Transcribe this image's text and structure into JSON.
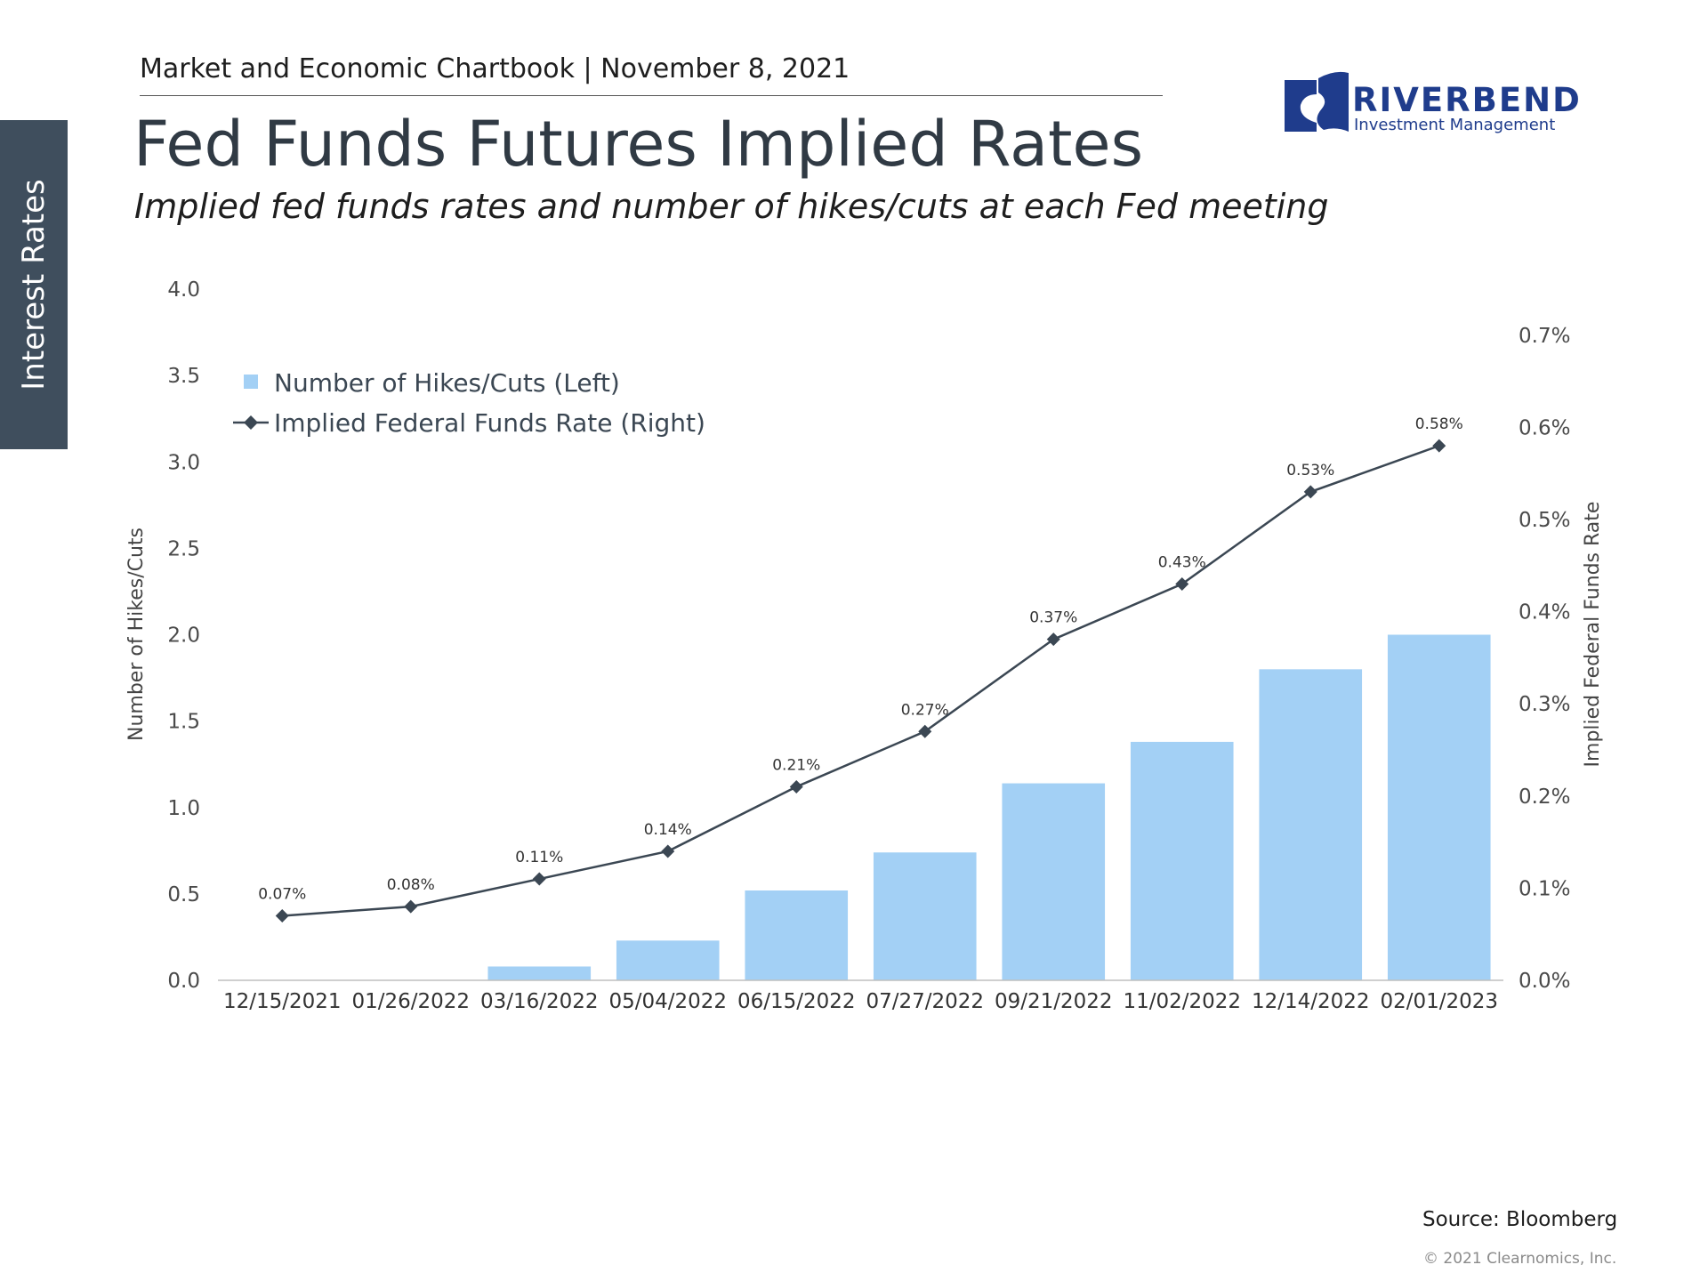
{
  "side_tab": {
    "label": "Interest Rates"
  },
  "header": {
    "text": "Market and Economic Chartbook | November 8, 2021",
    "title": "Fed Funds Futures Implied Rates",
    "subtitle": "Implied fed funds rates and number of hikes/cuts at each Fed meeting"
  },
  "logo": {
    "word": "RIVERBEND",
    "sub": "Investment Management",
    "color": "#1f3c8c"
  },
  "footer": {
    "source": "Source: Bloomberg",
    "copyright": "© 2021 Clearnomics, Inc."
  },
  "colors": {
    "bar": "#a3d0f5",
    "line": "#3b4753",
    "axis_text": "#4a4a4a",
    "side_tab": "#3f4e5d"
  },
  "chart_data": {
    "type": "bar",
    "categories": [
      "12/15/2021",
      "01/26/2022",
      "03/16/2022",
      "05/04/2022",
      "06/15/2022",
      "07/27/2022",
      "09/21/2022",
      "11/02/2022",
      "12/14/2022",
      "02/01/2023"
    ],
    "series": [
      {
        "name": "Number of Hikes/Cuts (Left)",
        "type": "bar",
        "axis": "left",
        "values": [
          0.0,
          0.0,
          0.08,
          0.23,
          0.52,
          0.74,
          1.14,
          1.38,
          1.8,
          2.0
        ]
      },
      {
        "name": "Implied Federal Funds Rate (Right)",
        "type": "line",
        "axis": "right",
        "marker": "diamond",
        "values": [
          0.07,
          0.08,
          0.11,
          0.14,
          0.21,
          0.27,
          0.37,
          0.43,
          0.53,
          0.58
        ],
        "labels": [
          "0.07%",
          "0.08%",
          "0.11%",
          "0.14%",
          "0.21%",
          "0.27%",
          "0.37%",
          "0.43%",
          "0.53%",
          "0.58%"
        ]
      }
    ],
    "y_left": {
      "label": "Number of Hikes/Cuts",
      "range": [
        0,
        4.0
      ],
      "ticks": [
        "0.0",
        "0.5",
        "1.0",
        "1.5",
        "2.0",
        "2.5",
        "3.0",
        "3.5",
        "4.0"
      ]
    },
    "y_right": {
      "label": "Implied Federal Funds Rate",
      "range": [
        0,
        0.75
      ],
      "tick_values": [
        0,
        0.1,
        0.2,
        0.3,
        0.4,
        0.5,
        0.6,
        0.7
      ],
      "ticks": [
        "0.0%",
        "0.1%",
        "0.2%",
        "0.3%",
        "0.4%",
        "0.5%",
        "0.6%",
        "0.7%"
      ]
    },
    "legend": {
      "position": "top-left",
      "entries": [
        "Number of Hikes/Cuts (Left)",
        "Implied Federal Funds Rate (Right)"
      ]
    },
    "grid": false
  }
}
